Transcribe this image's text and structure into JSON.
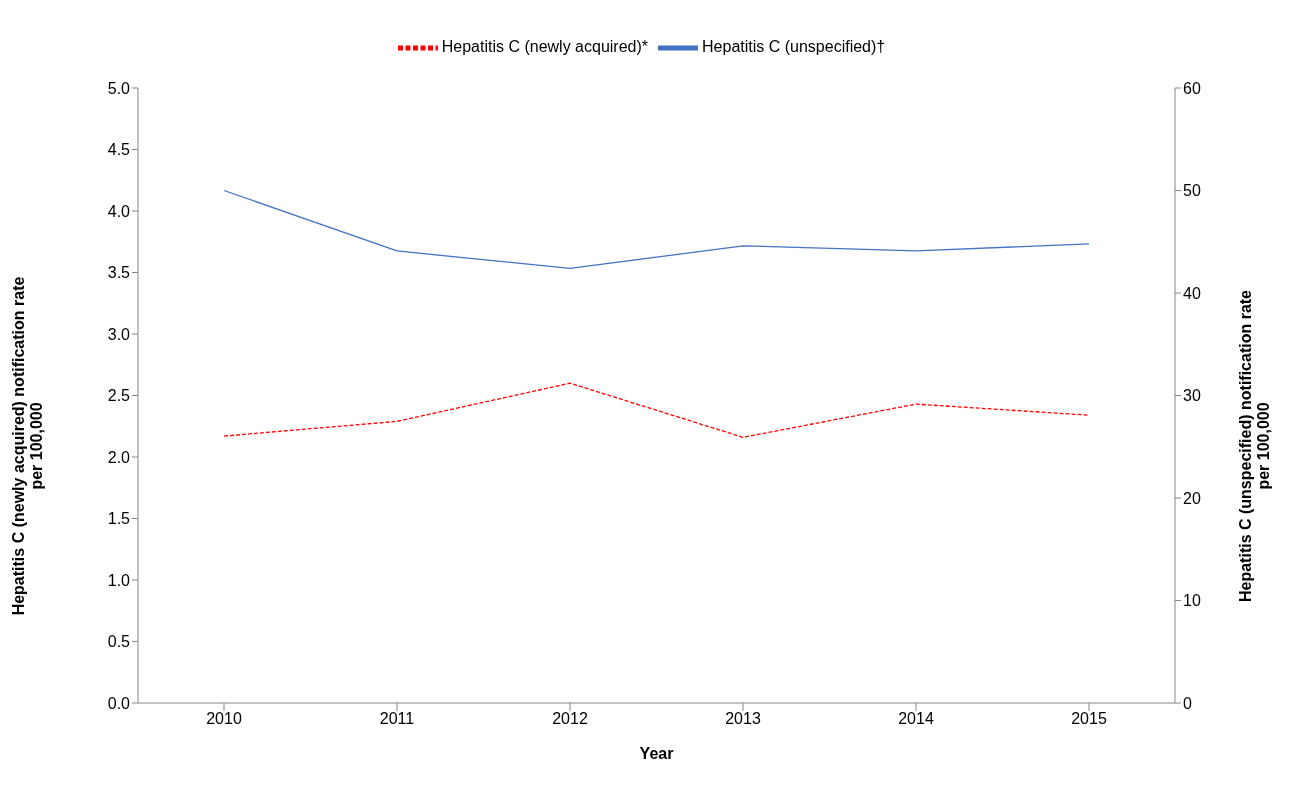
{
  "chart_data": {
    "type": "line",
    "xlabel": "Year",
    "ylabel": "Hepatitis C (newly acquired) notification rate per 100,000",
    "y2label": "Hepatitis C (unspecified) notification rate per 100,000",
    "categories": [
      "2010",
      "2011",
      "2012",
      "2013",
      "2014",
      "2015"
    ],
    "series": [
      {
        "name": "Hepatitis C (newly acquired)*",
        "color": "#ff0000",
        "line_style": "dashed",
        "values": [
          2.17,
          2.29,
          2.6,
          2.16,
          2.43,
          2.34
        ]
      },
      {
        "name": "Hepatitis C (unspecified)†",
        "color": "#4472c4",
        "line_style": "solid",
        "axis": "y2",
        "values": [
          50.0,
          44.1,
          42.4,
          44.6,
          44.1,
          44.8
        ]
      }
    ],
    "ylim": [
      0,
      5
    ],
    "yticks": [
      {
        "value": 0,
        "label": "0.0"
      },
      {
        "value": 0.5,
        "label": "0.5"
      },
      {
        "value": 1,
        "label": "1.0"
      },
      {
        "value": 1.5,
        "label": "1.5"
      },
      {
        "value": 2,
        "label": "2.0"
      },
      {
        "value": 2.5,
        "label": "2.5"
      },
      {
        "value": 3,
        "label": "3.0"
      },
      {
        "value": 3.5,
        "label": "3.5"
      },
      {
        "value": 4,
        "label": "4.0"
      },
      {
        "value": 4.5,
        "label": "4.5"
      },
      {
        "value": 5,
        "label": "5.0"
      }
    ],
    "y2lim": [
      0,
      60
    ],
    "y2ticks": [
      0,
      10,
      20,
      30,
      40,
      50,
      60
    ],
    "grid": false,
    "legend": "top",
    "marker": "none"
  }
}
